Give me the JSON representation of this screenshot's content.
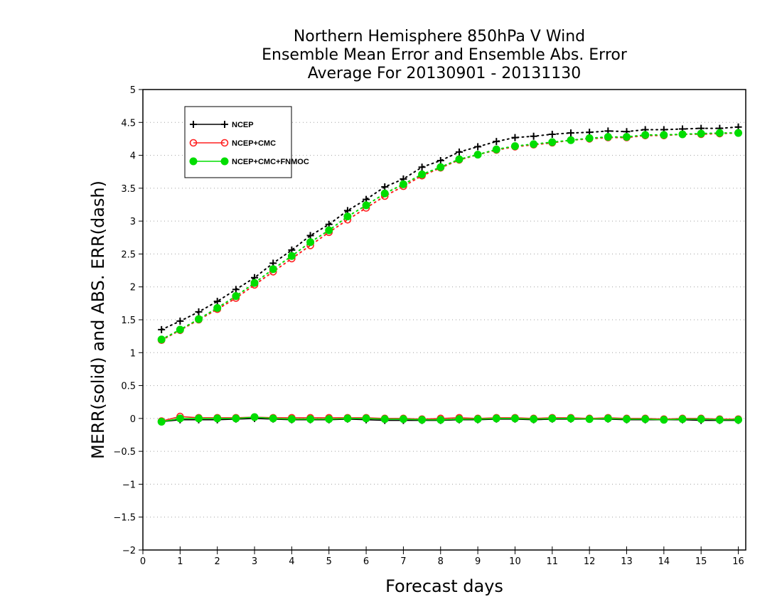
{
  "chart_data": {
    "type": "line",
    "title": [
      "Northern Hemisphere 850hPa V Wind",
      "Ensemble Mean Error and Ensemble Abs. Error",
      "Average For 20130901 - 20131130"
    ],
    "xlabel": "Forecast days",
    "ylabel": "MERR(solid) and ABS. ERR(dash)",
    "xlim": [
      0,
      16.2
    ],
    "ylim": [
      -2,
      5
    ],
    "xticks": [
      "0",
      "1",
      "2",
      "3",
      "4",
      "5",
      "6",
      "7",
      "8",
      "9",
      "10",
      "11",
      "12",
      "13",
      "14",
      "15",
      "16"
    ],
    "yticks": [
      "5",
      "4.5",
      "4",
      "3.5",
      "3",
      "2.5",
      "2",
      "1.5",
      "1",
      "0.5",
      "0",
      "−0.5",
      "−1",
      "−1.5",
      "−2"
    ],
    "x": [
      0.5,
      1,
      1.5,
      2,
      2.5,
      3,
      3.5,
      4,
      4.5,
      5,
      5.5,
      6,
      6.5,
      7,
      7.5,
      8,
      8.5,
      9,
      9.5,
      10,
      10.5,
      11,
      11.5,
      12,
      12.5,
      13,
      13.5,
      14,
      14.5,
      15,
      15.5,
      16
    ],
    "grid": "horizontal dotted",
    "legend_position": "top-left",
    "series": [
      {
        "name": "NCEP",
        "color": "#000000",
        "marker": "plus",
        "abs_err": [
          1.35,
          1.48,
          1.62,
          1.78,
          1.96,
          2.14,
          2.36,
          2.56,
          2.78,
          2.95,
          3.16,
          3.33,
          3.52,
          3.64,
          3.82,
          3.92,
          4.05,
          4.13,
          4.21,
          4.27,
          4.29,
          4.32,
          4.34,
          4.35,
          4.37,
          4.36,
          4.39,
          4.39,
          4.4,
          4.41,
          4.41,
          4.43
        ],
        "mean_err": [
          -0.05,
          -0.02,
          -0.02,
          -0.02,
          -0.01,
          0.0,
          -0.01,
          -0.02,
          -0.02,
          -0.02,
          -0.01,
          -0.02,
          -0.03,
          -0.03,
          -0.03,
          -0.03,
          -0.02,
          -0.02,
          -0.01,
          -0.01,
          -0.02,
          -0.01,
          -0.01,
          -0.01,
          -0.01,
          -0.02,
          -0.02,
          -0.02,
          -0.02,
          -0.03,
          -0.03,
          -0.03
        ]
      },
      {
        "name": "NCEP+CMC",
        "color": "#ff2020",
        "marker": "open-circle",
        "abs_err": [
          1.19,
          1.34,
          1.5,
          1.66,
          1.83,
          2.03,
          2.23,
          2.43,
          2.63,
          2.83,
          3.02,
          3.2,
          3.38,
          3.53,
          3.69,
          3.81,
          3.93,
          4.01,
          4.08,
          4.13,
          4.16,
          4.19,
          4.23,
          4.25,
          4.27,
          4.27,
          4.3,
          4.3,
          4.32,
          4.32,
          4.33,
          4.34
        ],
        "mean_err": [
          -0.04,
          0.03,
          0.01,
          0.01,
          0.01,
          0.02,
          0.01,
          0.01,
          0.01,
          0.01,
          0.01,
          0.01,
          0.0,
          0.0,
          -0.01,
          0.0,
          0.01,
          0.0,
          0.01,
          0.01,
          0.0,
          0.01,
          0.01,
          0.0,
          0.01,
          0.0,
          0.0,
          -0.01,
          0.0,
          0.0,
          -0.01,
          -0.01
        ]
      },
      {
        "name": "NCEP+CMC+FNMOC",
        "color": "#00dd00",
        "marker": "filled-circle",
        "abs_err": [
          1.2,
          1.35,
          1.51,
          1.68,
          1.86,
          2.06,
          2.27,
          2.47,
          2.68,
          2.86,
          3.07,
          3.24,
          3.42,
          3.56,
          3.71,
          3.82,
          3.94,
          4.01,
          4.09,
          4.14,
          4.17,
          4.2,
          4.23,
          4.26,
          4.28,
          4.28,
          4.31,
          4.31,
          4.32,
          4.33,
          4.34,
          4.34
        ],
        "mean_err": [
          -0.05,
          0.0,
          0.0,
          0.0,
          0.0,
          0.02,
          0.0,
          -0.01,
          -0.01,
          -0.01,
          0.0,
          0.0,
          -0.01,
          -0.01,
          -0.02,
          -0.02,
          -0.01,
          -0.01,
          0.0,
          0.0,
          -0.01,
          0.0,
          0.0,
          -0.01,
          0.0,
          -0.01,
          -0.01,
          -0.02,
          -0.01,
          -0.01,
          -0.02,
          -0.02
        ]
      }
    ]
  }
}
